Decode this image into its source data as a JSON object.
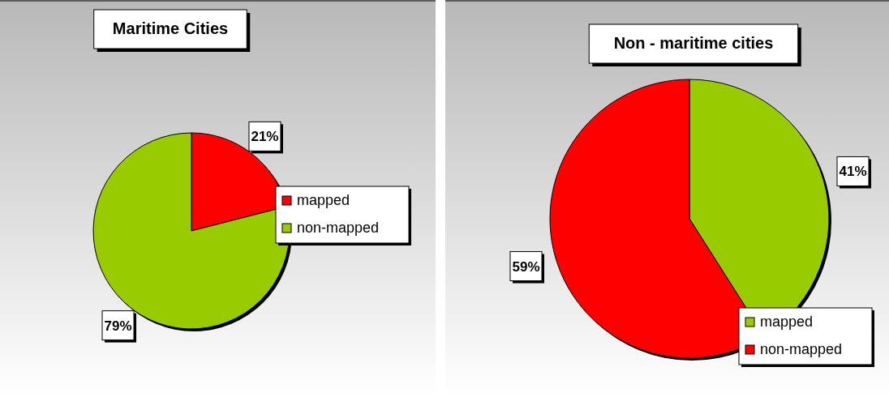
{
  "chart_data": [
    {
      "type": "pie",
      "title": "Maritime Cities",
      "categories": [
        "mapped",
        "non-mapped"
      ],
      "values": [
        21,
        79
      ],
      "colors": [
        "#ff0000",
        "#99cc00"
      ],
      "value_labels": [
        "21%",
        "79%"
      ],
      "legend": "right"
    },
    {
      "type": "pie",
      "title": "Non - maritime cities",
      "categories": [
        "mapped",
        "non-mapped"
      ],
      "values": [
        41,
        59
      ],
      "colors": [
        "#99cc00",
        "#ff0000"
      ],
      "value_labels": [
        "41%",
        "59%"
      ],
      "legend": "bottom right"
    }
  ]
}
